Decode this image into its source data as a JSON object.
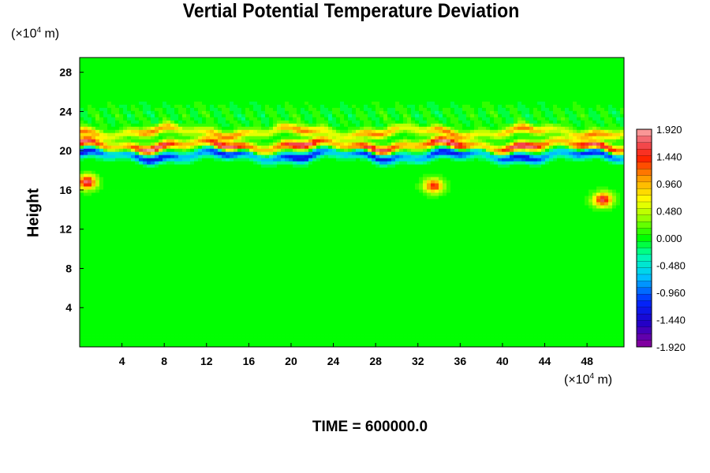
{
  "chart_data": {
    "type": "heatmap",
    "title": "Vertial Potential Temperature Deviation",
    "ylabel": "Height",
    "y_unit": {
      "prefix": "(×10",
      "exp": "4",
      "suffix": " m)"
    },
    "x_unit": {
      "prefix": "(×10",
      "exp": "4",
      "suffix": " m)"
    },
    "xlim": [
      0,
      51.5
    ],
    "ylim": [
      0,
      29.5
    ],
    "x_ticks": [
      "4",
      "8",
      "12",
      "16",
      "20",
      "24",
      "28",
      "32",
      "36",
      "40",
      "44",
      "48"
    ],
    "y_ticks": [
      "4",
      "8",
      "12",
      "16",
      "20",
      "24",
      "28"
    ],
    "colorbar": {
      "min": -1.92,
      "max": 1.92,
      "labels": [
        "1.920",
        "1.440",
        "0.960",
        "0.480",
        "0.000",
        "-0.480",
        "-0.960",
        "-1.440",
        "-1.920"
      ],
      "levels": 33
    },
    "features": [
      {
        "kind": "band",
        "y": 20.5,
        "amplitude": 1.9,
        "description_values": [
          1.92,
          -1.92
        ]
      },
      {
        "kind": "band",
        "y": 21.9,
        "amplitude": 1.2
      },
      {
        "kind": "band",
        "y": 19.5,
        "amplitude": -1.4
      },
      {
        "kind": "patch",
        "x": 0.7,
        "y": 16.8,
        "value": 1.8
      },
      {
        "kind": "patch",
        "x": 49.5,
        "y": 15.0,
        "value": 1.7
      },
      {
        "kind": "patch",
        "x": 33.5,
        "y": 16.4,
        "value": 1.5
      }
    ],
    "footer": "TIME = 600000.0"
  }
}
